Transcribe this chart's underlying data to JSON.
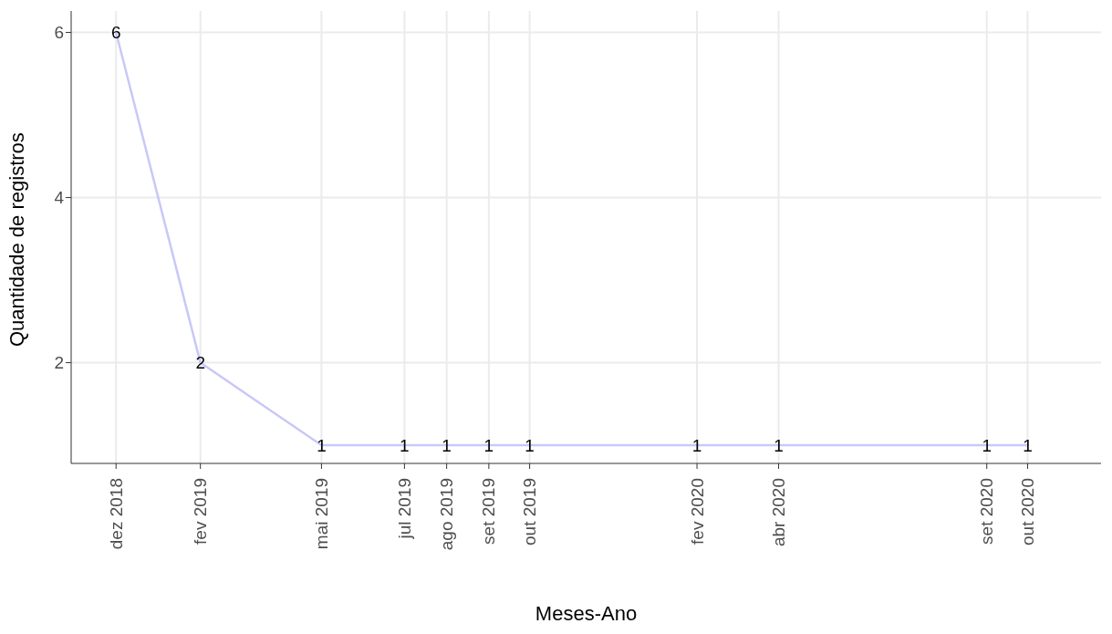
{
  "chart_data": {
    "type": "line",
    "xlabel": "Meses-Ano",
    "ylabel": "Quantidade de registros",
    "x": [
      "2018-12",
      "2019-02",
      "2019-05",
      "2019-07",
      "2019-08",
      "2019-09",
      "2019-10",
      "2020-02",
      "2020-04",
      "2020-09",
      "2020-10"
    ],
    "series": [
      {
        "color": "#c8c8f8",
        "values": [
          6,
          2,
          1,
          1,
          1,
          1,
          1,
          1,
          1,
          1,
          1
        ]
      }
    ],
    "xlim": [
      "2018-10-29",
      "2020-11-24"
    ],
    "xticks": [
      {
        "value": "2018-12",
        "label": "dez 2018"
      },
      {
        "value": "2019-02",
        "label": "fev 2019"
      },
      {
        "value": "2019-05",
        "label": "mai 2019"
      },
      {
        "value": "2019-07",
        "label": "jul 2019"
      },
      {
        "value": "2019-08",
        "label": "ago 2019"
      },
      {
        "value": "2019-09",
        "label": "set 2019"
      },
      {
        "value": "2019-10",
        "label": "out 2019"
      },
      {
        "value": "2020-02",
        "label": "fev 2020"
      },
      {
        "value": "2020-04",
        "label": "abr 2020"
      },
      {
        "value": "2020-09",
        "label": "set 2020"
      },
      {
        "value": "2020-10",
        "label": "out 2020"
      }
    ],
    "ylim": [
      0.78,
      6.26
    ],
    "yticks": [
      2,
      4,
      6
    ],
    "grid": true,
    "data_labels": true,
    "marker": "none",
    "line_style": "solid"
  }
}
